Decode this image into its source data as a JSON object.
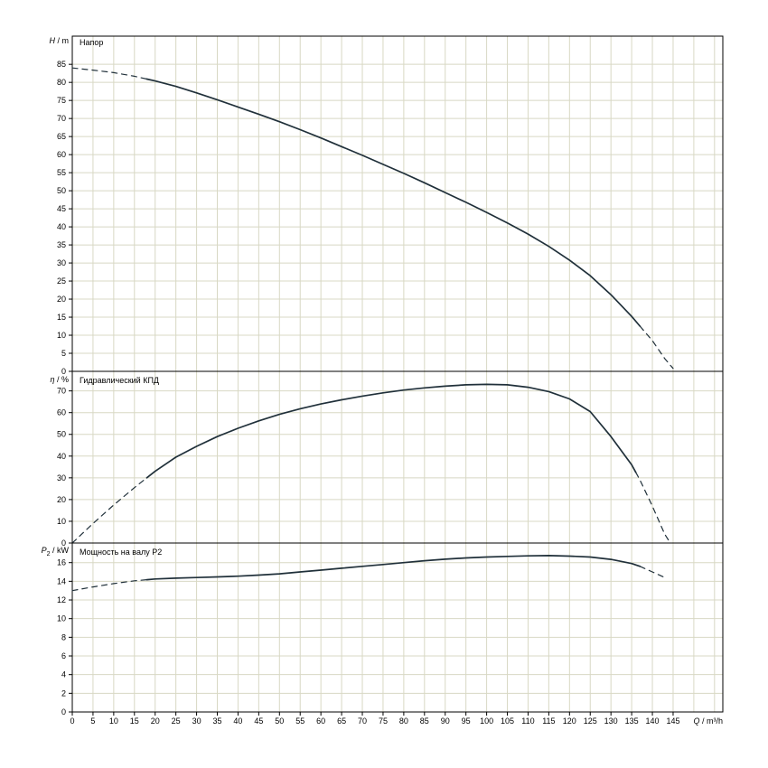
{
  "chart_style": {
    "background": "#ffffff",
    "grid_color": "#d8d8c4",
    "axis_color": "#000000",
    "curve_color": "#20303a",
    "text_color": "#000000"
  },
  "x_axis": {
    "label_var": "Q",
    "label_unit": " / m³/h",
    "lim": [
      0,
      157
    ],
    "tick_step": 5,
    "tick_max": 145
  },
  "chart_data": [
    {
      "type": "line",
      "title": "Напор",
      "ylabel_var": "H",
      "ylabel_unit": " / m",
      "ylim": [
        0,
        92.8
      ],
      "yticks": {
        "step": 5,
        "max": 85
      },
      "solid_range": [
        18,
        137
      ],
      "grid": true,
      "series": [
        {
          "name": "H(Q)",
          "x": [
            0,
            5,
            10,
            15,
            20,
            25,
            30,
            35,
            40,
            45,
            50,
            55,
            60,
            65,
            70,
            75,
            80,
            85,
            90,
            95,
            100,
            105,
            110,
            115,
            120,
            125,
            130,
            135,
            137,
            140,
            143,
            145
          ],
          "y": [
            84,
            83.4,
            82.7,
            81.7,
            80.4,
            78.9,
            77.1,
            75.2,
            73.2,
            71.2,
            69.1,
            66.9,
            64.6,
            62.2,
            59.8,
            57.3,
            54.8,
            52.2,
            49.5,
            46.8,
            44,
            41.1,
            38,
            34.6,
            30.8,
            26.5,
            21.2,
            15.2,
            12.5,
            8.5,
            3.5,
            0.8
          ]
        }
      ]
    },
    {
      "type": "line",
      "title": "Гидравлический КПД",
      "ylabel_var": "η",
      "ylabel_unit": " / %",
      "ylim": [
        0,
        79
      ],
      "yticks": {
        "step": 10,
        "max": 70
      },
      "solid_range": [
        18,
        136
      ],
      "grid": true,
      "series": [
        {
          "name": "eta(Q)",
          "x": [
            0,
            5,
            10,
            15,
            20,
            25,
            30,
            35,
            40,
            45,
            50,
            55,
            60,
            65,
            70,
            75,
            80,
            85,
            90,
            95,
            100,
            105,
            110,
            115,
            120,
            125,
            130,
            135,
            137,
            140,
            143,
            144
          ],
          "y": [
            0,
            9,
            17.5,
            25.5,
            33,
            39.5,
            44.5,
            49,
            52.8,
            56.2,
            59.2,
            61.8,
            64,
            65.9,
            67.6,
            69.1,
            70.4,
            71.4,
            72.2,
            72.8,
            73,
            72.8,
            71.7,
            69.7,
            66.3,
            60.5,
            49,
            36,
            29,
            17,
            4,
            1
          ]
        }
      ]
    },
    {
      "type": "line",
      "title": "Мощность на валу P2",
      "ylabel_var": "P",
      "ylabel_sub": "2",
      "ylabel_unit": " / kW",
      "ylim": [
        0,
        18.1
      ],
      "yticks": {
        "step": 2,
        "max": 16
      },
      "solid_range": [
        18,
        137
      ],
      "grid": true,
      "series": [
        {
          "name": "P2(Q)",
          "x": [
            0,
            5,
            10,
            15,
            20,
            25,
            30,
            35,
            40,
            45,
            50,
            55,
            60,
            65,
            70,
            75,
            80,
            85,
            90,
            95,
            100,
            105,
            110,
            115,
            120,
            125,
            130,
            135,
            137,
            140,
            143
          ],
          "y": [
            13,
            13.4,
            13.75,
            14.05,
            14.25,
            14.33,
            14.4,
            14.47,
            14.55,
            14.66,
            14.8,
            15,
            15.2,
            15.4,
            15.6,
            15.8,
            16,
            16.2,
            16.37,
            16.5,
            16.6,
            16.67,
            16.73,
            16.75,
            16.7,
            16.6,
            16.35,
            15.9,
            15.6,
            15,
            14.4
          ]
        }
      ]
    }
  ]
}
